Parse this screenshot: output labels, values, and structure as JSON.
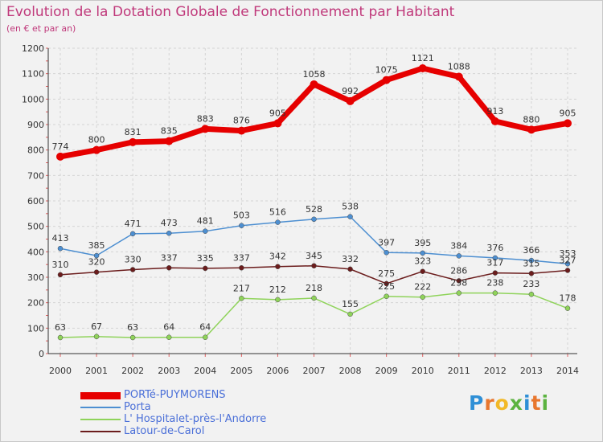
{
  "chart_data": {
    "type": "line",
    "title": "Evolution de la Dotation Globale de Fonctionnement par Habitant",
    "subtitle": "(en € et par an)",
    "xlabel": "",
    "ylabel": "",
    "ylim": [
      0,
      1200
    ],
    "yticks": [
      0,
      100,
      200,
      300,
      400,
      500,
      600,
      700,
      800,
      900,
      1000,
      1100,
      1200
    ],
    "categories": [
      "2000",
      "2001",
      "2002",
      "2003",
      "2004",
      "2005",
      "2006",
      "2007",
      "2008",
      "2009",
      "2010",
      "2011",
      "2012",
      "2013",
      "2014"
    ],
    "series": [
      {
        "name": "PORTé-PUYMORENS",
        "color": "#e60000",
        "values": [
          774,
          800,
          831,
          835,
          883,
          876,
          905,
          1058,
          992,
          1075,
          1121,
          1088,
          913,
          880,
          905
        ]
      },
      {
        "name": "Porta",
        "color": "#4d8fd1",
        "values": [
          413,
          385,
          471,
          473,
          481,
          503,
          516,
          528,
          538,
          397,
          395,
          384,
          376,
          366,
          353
        ]
      },
      {
        "name": "L' Hospitalet-près-l'Andorre",
        "color": "#8fd35a",
        "values": [
          63,
          67,
          63,
          64,
          64,
          217,
          212,
          218,
          155,
          225,
          222,
          238,
          238,
          233,
          178
        ]
      },
      {
        "name": "Latour-de-Carol",
        "color": "#6b1c1c",
        "values": [
          310,
          320,
          330,
          337,
          335,
          337,
          342,
          345,
          332,
          275,
          323,
          286,
          317,
          315,
          327
        ]
      }
    ],
    "grid": true,
    "legend": "bottom-left"
  },
  "logo": {
    "letters": [
      "P",
      "r",
      "o",
      "x",
      "i",
      "t",
      "i"
    ]
  }
}
